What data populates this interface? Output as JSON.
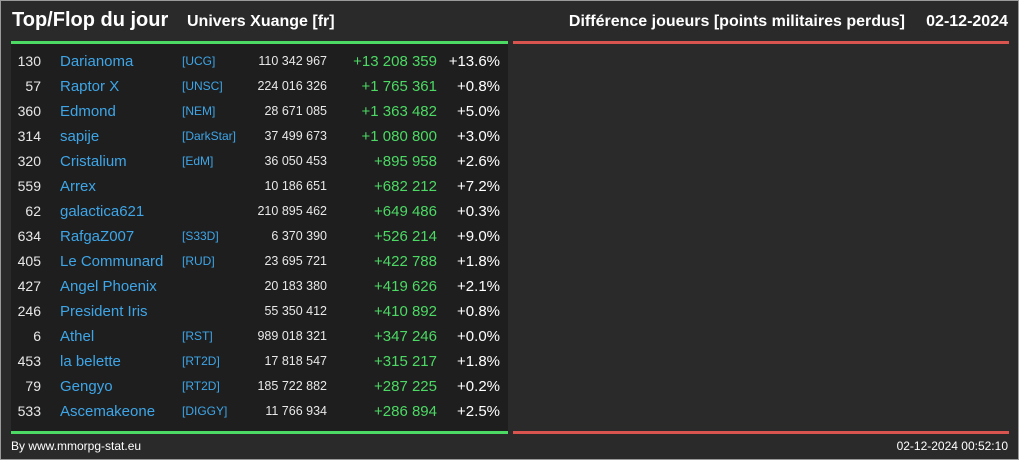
{
  "header": {
    "title": "Top/Flop du jour",
    "universe": "Univers Xuange [fr]",
    "stat": "Différence joueurs [points militaires perdus]",
    "date": "02-12-2024"
  },
  "colors": {
    "background": "#2a2a2a",
    "panel": "#1e1e1e",
    "link": "#3ea6e8",
    "positive": "#4cd964",
    "negative": "#d9534f"
  },
  "top": [
    {
      "rank": "130",
      "name": "Darianoma",
      "alliance": "[UCG]",
      "points": "110 342 967",
      "diff": "+13 208 359",
      "pct": "+13.6%"
    },
    {
      "rank": "57",
      "name": "Raptor X",
      "alliance": "[UNSC]",
      "points": "224 016 326",
      "diff": "+1 765 361",
      "pct": "+0.8%"
    },
    {
      "rank": "360",
      "name": "Edmond",
      "alliance": "[NEM]",
      "points": "28 671 085",
      "diff": "+1 363 482",
      "pct": "+5.0%"
    },
    {
      "rank": "314",
      "name": "sapije",
      "alliance": "[DarkStar]",
      "points": "37 499 673",
      "diff": "+1 080 800",
      "pct": "+3.0%"
    },
    {
      "rank": "320",
      "name": "Cristalium",
      "alliance": "[EdM]",
      "points": "36 050 453",
      "diff": "+895 958",
      "pct": "+2.6%"
    },
    {
      "rank": "559",
      "name": "Arrex",
      "alliance": "",
      "points": "10 186 651",
      "diff": "+682 212",
      "pct": "+7.2%"
    },
    {
      "rank": "62",
      "name": "galactica621",
      "alliance": "",
      "points": "210 895 462",
      "diff": "+649 486",
      "pct": "+0.3%"
    },
    {
      "rank": "634",
      "name": "RafgaZ007",
      "alliance": "[S33D]",
      "points": "6 370 390",
      "diff": "+526 214",
      "pct": "+9.0%"
    },
    {
      "rank": "405",
      "name": "Le Communard",
      "alliance": "[RUD]",
      "points": "23 695 721",
      "diff": "+422 788",
      "pct": "+1.8%"
    },
    {
      "rank": "427",
      "name": "Angel Phoenix",
      "alliance": "",
      "points": "20 183 380",
      "diff": "+419 626",
      "pct": "+2.1%"
    },
    {
      "rank": "246",
      "name": "President Iris",
      "alliance": "",
      "points": "55 350 412",
      "diff": "+410 892",
      "pct": "+0.8%"
    },
    {
      "rank": "6",
      "name": "Athel",
      "alliance": "[RST]",
      "points": "989 018 321",
      "diff": "+347 246",
      "pct": "+0.0%"
    },
    {
      "rank": "453",
      "name": "la belette",
      "alliance": "[RT2D]",
      "points": "17 818 547",
      "diff": "+315 217",
      "pct": "+1.8%"
    },
    {
      "rank": "79",
      "name": "Gengyo",
      "alliance": "[RT2D]",
      "points": "185 722 882",
      "diff": "+287 225",
      "pct": "+0.2%"
    },
    {
      "rank": "533",
      "name": "Ascemakeone",
      "alliance": "[DIGGY]",
      "points": "11 766 934",
      "diff": "+286 894",
      "pct": "+2.5%"
    }
  ],
  "footer": {
    "credit": "By www.mmorpg-stat.eu",
    "generated": "02-12-2024 00:52:10"
  }
}
